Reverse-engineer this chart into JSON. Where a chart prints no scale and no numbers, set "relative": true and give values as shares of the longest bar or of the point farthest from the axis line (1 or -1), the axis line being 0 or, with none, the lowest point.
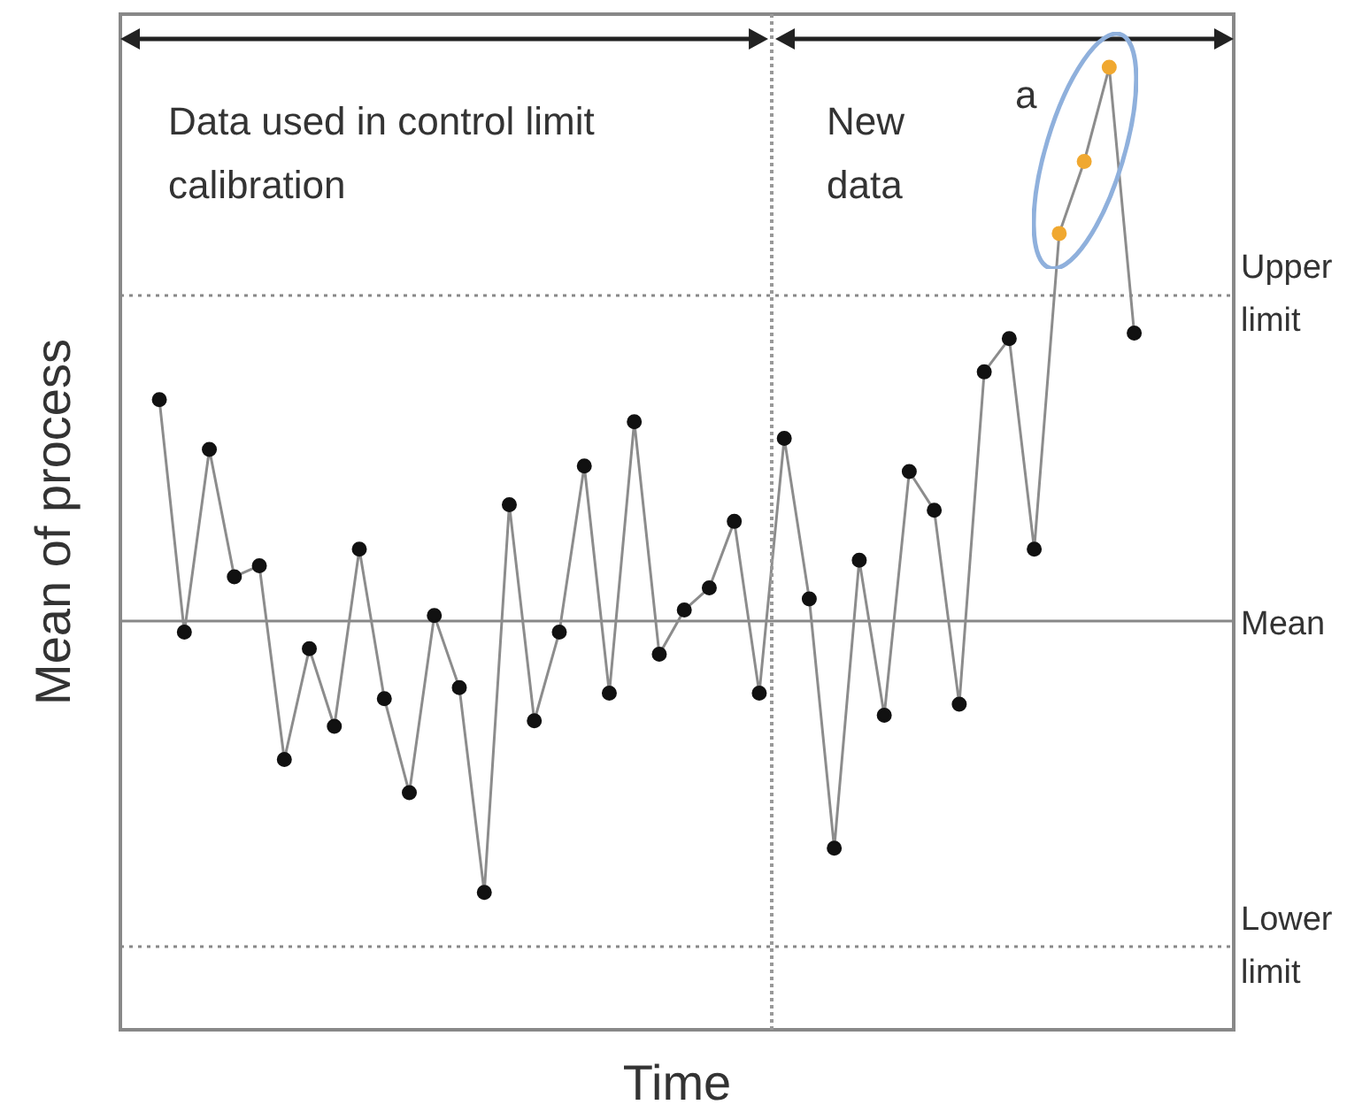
{
  "chart_data": {
    "type": "line",
    "relative": true,
    "xlabel": "Time",
    "ylabel": "Mean of process",
    "categories": [
      null,
      null,
      null,
      null,
      null,
      null,
      null,
      null,
      null,
      null,
      null,
      null,
      null,
      null,
      null,
      null,
      null,
      null,
      null,
      null,
      null,
      null,
      null,
      null,
      null,
      null,
      null,
      null,
      null,
      null,
      null,
      null,
      null,
      null,
      null,
      null,
      null,
      null,
      null,
      null
    ],
    "series": [
      {
        "color": "#8c8c8c",
        "colors": [
          "#111111",
          "#111111",
          "#111111",
          "#111111",
          "#111111",
          "#111111",
          "#111111",
          "#111111",
          "#111111",
          "#111111",
          "#111111",
          "#111111",
          "#111111",
          "#111111",
          "#111111",
          "#111111",
          "#111111",
          "#111111",
          "#111111",
          "#111111",
          "#111111",
          "#111111",
          "#111111",
          "#111111",
          "#111111",
          "#111111",
          "#111111",
          "#111111",
          "#111111",
          "#111111",
          "#111111",
          "#111111",
          "#111111",
          "#111111",
          "#111111",
          "#111111",
          "#f0a830",
          "#f0a830",
          "#f0a830",
          "#111111"
        ],
        "values": [
          0.4,
          -0.02,
          0.31,
          0.08,
          0.1,
          -0.25,
          -0.05,
          -0.19,
          0.13,
          -0.14,
          -0.31,
          0.01,
          -0.12,
          -0.49,
          0.21,
          -0.18,
          -0.02,
          0.28,
          -0.13,
          0.36,
          -0.06,
          0.02,
          0.06,
          0.18,
          -0.13,
          0.33,
          0.04,
          -0.41,
          0.11,
          -0.17,
          0.27,
          0.2,
          -0.15,
          0.45,
          0.51,
          0.13,
          0.7,
          0.83,
          1,
          0.52
        ]
      }
    ],
    "ref_lines": [
      {
        "axis": "y",
        "value": 0.588,
        "label": "Upper limit",
        "line_style": "dotted",
        "color": "#888888"
      },
      {
        "axis": "y",
        "value": 0,
        "label": "Mean",
        "line_style": "solid",
        "color": "#888888"
      },
      {
        "axis": "y",
        "value": -0.588,
        "label": "Lower limit",
        "line_style": "dotted",
        "color": "#888888"
      }
    ],
    "annotations": [
      "Data used in control limit calibration",
      "New data",
      "a"
    ],
    "marker": "circle",
    "line_style": "solid"
  }
}
